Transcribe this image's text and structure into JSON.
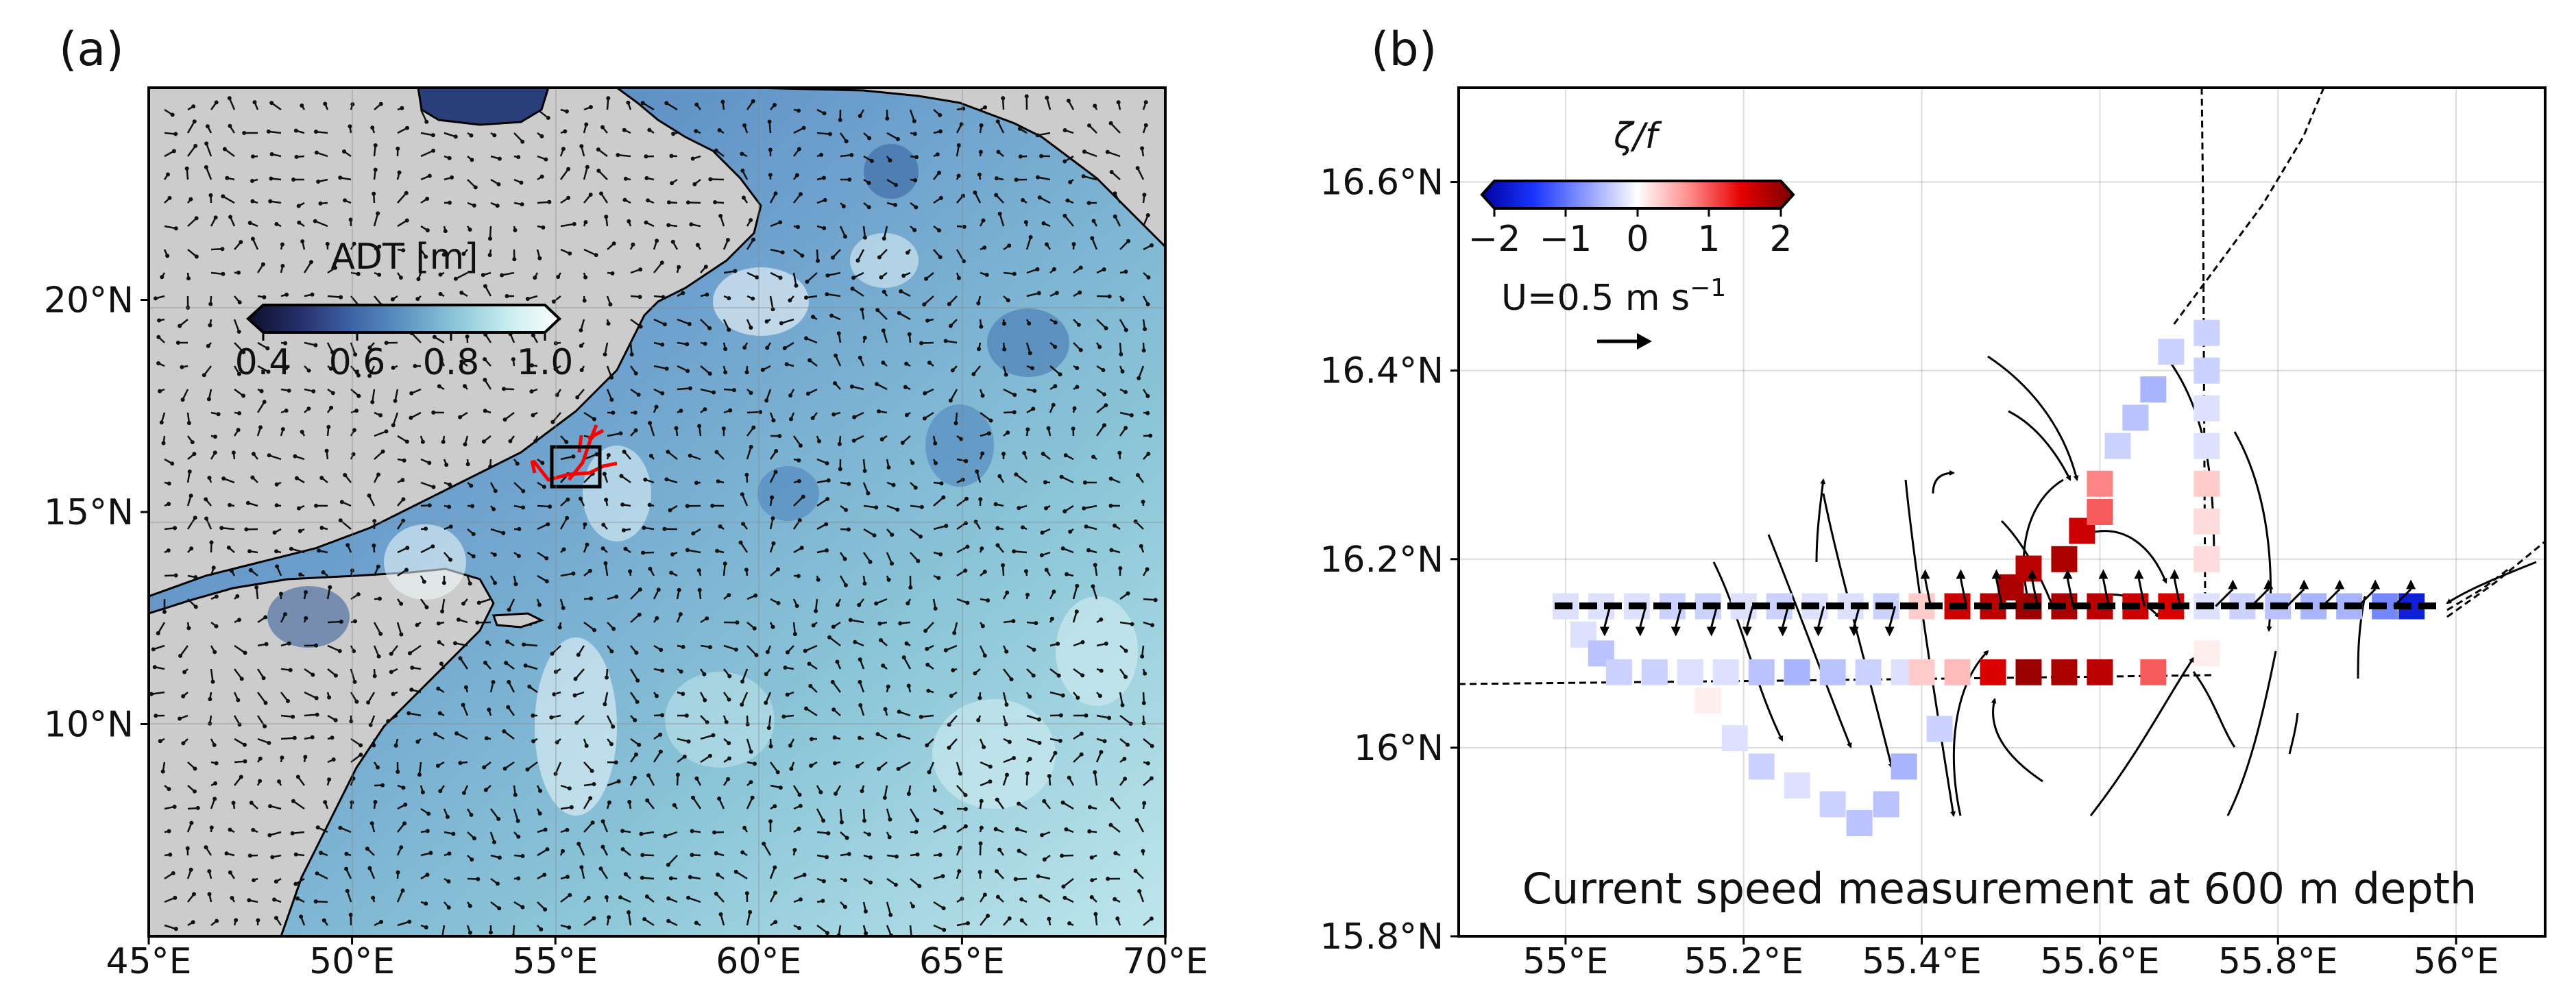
{
  "panels": {
    "a": {
      "letter": "(a)",
      "colorbar": {
        "title": "ADT [m]",
        "ticks": [
          "0.4",
          "0.6",
          "0.8",
          "1.0"
        ],
        "colors": [
          "#0d0f2a",
          "#262f6b",
          "#3d64a6",
          "#5d94c3",
          "#8cc6d8",
          "#c7ecef",
          "#ffffff"
        ]
      }
    },
    "b": {
      "letter": "(b)",
      "colorbar": {
        "title": "ζ/f",
        "ticks": [
          "−2",
          "−1",
          "0",
          "1",
          "2"
        ],
        "colors": [
          "#0000a0",
          "#1a35ff",
          "#8c9bff",
          "#ffffff",
          "#ff8c8c",
          "#e60000",
          "#7a0000"
        ]
      },
      "scale_label": "U=0.5 m s",
      "scale_exponent": "−1",
      "annotation": "Current speed measurement at 600 m depth"
    }
  },
  "chart_data": [
    {
      "type": "heatmap",
      "title": "",
      "xlabel": "",
      "ylabel": "",
      "x_ticks": [
        "45°E",
        "50°E",
        "55°E",
        "60°E",
        "65°E",
        "70°E"
      ],
      "y_ticks": [
        "10°N",
        "15°N",
        "20°N"
      ],
      "xlim": [
        45,
        70
      ],
      "ylim": [
        5,
        25
      ],
      "variable": "ADT",
      "unit": "m",
      "color_range": [
        0.4,
        1.0
      ],
      "land_color": "#cccccc",
      "overlays": [
        "geostrophic velocity vectors",
        "ADT contours"
      ],
      "study_box": {
        "lon": [
          54.9,
          56.1
        ],
        "lat": [
          15.8,
          16.8
        ],
        "color": "#111111"
      },
      "ship_tracks_color": "#ff0000",
      "grid": true
    },
    {
      "type": "scatter",
      "title": "",
      "xlabel": "",
      "ylabel": "",
      "x_ticks": [
        "55°E",
        "55.2°E",
        "55.4°E",
        "55.6°E",
        "55.8°E",
        "56°E"
      ],
      "y_ticks": [
        "15.8°N",
        "16°N",
        "16.2°N",
        "16.4°N",
        "16.6°N"
      ],
      "xlim": [
        54.88,
        56.1
      ],
      "ylim": [
        15.8,
        16.7
      ],
      "variable": "ζ/f",
      "color_range": [
        -2,
        2
      ],
      "grid": true,
      "points": [
        {
          "lon": 55.0,
          "lat": 16.15,
          "v": -0.2
        },
        {
          "lon": 55.04,
          "lat": 16.15,
          "v": -0.2
        },
        {
          "lon": 55.08,
          "lat": 16.15,
          "v": -0.2
        },
        {
          "lon": 55.12,
          "lat": 16.15,
          "v": -0.3
        },
        {
          "lon": 55.16,
          "lat": 16.15,
          "v": -0.3
        },
        {
          "lon": 55.2,
          "lat": 16.15,
          "v": -0.2
        },
        {
          "lon": 55.24,
          "lat": 16.15,
          "v": -0.3
        },
        {
          "lon": 55.28,
          "lat": 16.15,
          "v": -0.2
        },
        {
          "lon": 55.32,
          "lat": 16.15,
          "v": -0.2
        },
        {
          "lon": 55.36,
          "lat": 16.15,
          "v": -0.3
        },
        {
          "lon": 55.4,
          "lat": 16.15,
          "v": 0.3
        },
        {
          "lon": 55.44,
          "lat": 16.15,
          "v": 1.5
        },
        {
          "lon": 55.48,
          "lat": 16.15,
          "v": 1.6
        },
        {
          "lon": 55.52,
          "lat": 16.15,
          "v": 1.8
        },
        {
          "lon": 55.56,
          "lat": 16.15,
          "v": 1.7
        },
        {
          "lon": 55.6,
          "lat": 16.15,
          "v": 1.6
        },
        {
          "lon": 55.64,
          "lat": 16.15,
          "v": 1.5
        },
        {
          "lon": 55.68,
          "lat": 16.15,
          "v": 1.4
        },
        {
          "lon": 55.72,
          "lat": 16.15,
          "v": -0.2
        },
        {
          "lon": 55.76,
          "lat": 16.15,
          "v": -0.3
        },
        {
          "lon": 55.8,
          "lat": 16.15,
          "v": -0.4
        },
        {
          "lon": 55.84,
          "lat": 16.15,
          "v": -0.5
        },
        {
          "lon": 55.88,
          "lat": 16.15,
          "v": -0.5
        },
        {
          "lon": 55.92,
          "lat": 16.15,
          "v": -0.8
        },
        {
          "lon": 55.95,
          "lat": 16.15,
          "v": -1.6
        },
        {
          "lon": 55.02,
          "lat": 16.12,
          "v": -0.2
        },
        {
          "lon": 55.04,
          "lat": 16.1,
          "v": -0.4
        },
        {
          "lon": 55.06,
          "lat": 16.08,
          "v": -0.3
        },
        {
          "lon": 55.1,
          "lat": 16.08,
          "v": -0.3
        },
        {
          "lon": 55.14,
          "lat": 16.08,
          "v": -0.2
        },
        {
          "lon": 55.18,
          "lat": 16.08,
          "v": -0.2
        },
        {
          "lon": 55.22,
          "lat": 16.08,
          "v": -0.4
        },
        {
          "lon": 55.26,
          "lat": 16.08,
          "v": -0.5
        },
        {
          "lon": 55.3,
          "lat": 16.08,
          "v": -0.4
        },
        {
          "lon": 55.34,
          "lat": 16.08,
          "v": -0.3
        },
        {
          "lon": 55.38,
          "lat": 16.08,
          "v": -0.2
        },
        {
          "lon": 55.4,
          "lat": 16.08,
          "v": 0.3
        },
        {
          "lon": 55.44,
          "lat": 16.08,
          "v": 0.4
        },
        {
          "lon": 55.48,
          "lat": 16.08,
          "v": 1.4
        },
        {
          "lon": 55.52,
          "lat": 16.08,
          "v": 1.8
        },
        {
          "lon": 55.56,
          "lat": 16.08,
          "v": 1.7
        },
        {
          "lon": 55.6,
          "lat": 16.08,
          "v": 1.6
        },
        {
          "lon": 55.66,
          "lat": 16.08,
          "v": 0.9
        },
        {
          "lon": 55.16,
          "lat": 16.05,
          "v": 0.1
        },
        {
          "lon": 55.19,
          "lat": 16.01,
          "v": -0.2
        },
        {
          "lon": 55.22,
          "lat": 15.98,
          "v": -0.3
        },
        {
          "lon": 55.26,
          "lat": 15.96,
          "v": -0.2
        },
        {
          "lon": 55.3,
          "lat": 15.94,
          "v": -0.3
        },
        {
          "lon": 55.33,
          "lat": 15.92,
          "v": -0.4
        },
        {
          "lon": 55.36,
          "lat": 15.94,
          "v": -0.4
        },
        {
          "lon": 55.38,
          "lat": 15.98,
          "v": -0.5
        },
        {
          "lon": 55.42,
          "lat": 16.02,
          "v": -0.3
        },
        {
          "lon": 55.5,
          "lat": 16.17,
          "v": 1.7
        },
        {
          "lon": 55.52,
          "lat": 16.19,
          "v": 1.6
        },
        {
          "lon": 55.56,
          "lat": 16.2,
          "v": 1.7
        },
        {
          "lon": 55.58,
          "lat": 16.23,
          "v": 1.5
        },
        {
          "lon": 55.6,
          "lat": 16.25,
          "v": 0.9
        },
        {
          "lon": 55.6,
          "lat": 16.28,
          "v": 0.7
        },
        {
          "lon": 55.62,
          "lat": 16.32,
          "v": -0.3
        },
        {
          "lon": 55.64,
          "lat": 16.35,
          "v": -0.4
        },
        {
          "lon": 55.66,
          "lat": 16.38,
          "v": -0.5
        },
        {
          "lon": 55.68,
          "lat": 16.42,
          "v": -0.3
        },
        {
          "lon": 55.72,
          "lat": 16.44,
          "v": -0.3
        },
        {
          "lon": 55.72,
          "lat": 16.4,
          "v": -0.3
        },
        {
          "lon": 55.72,
          "lat": 16.36,
          "v": -0.2
        },
        {
          "lon": 55.72,
          "lat": 16.32,
          "v": -0.2
        },
        {
          "lon": 55.72,
          "lat": 16.28,
          "v": 0.3
        },
        {
          "lon": 55.72,
          "lat": 16.24,
          "v": 0.2
        },
        {
          "lon": 55.72,
          "lat": 16.2,
          "v": 0.2
        },
        {
          "lon": 55.72,
          "lat": 16.1,
          "v": 0.1
        }
      ],
      "flow_streamlines": true
    }
  ]
}
